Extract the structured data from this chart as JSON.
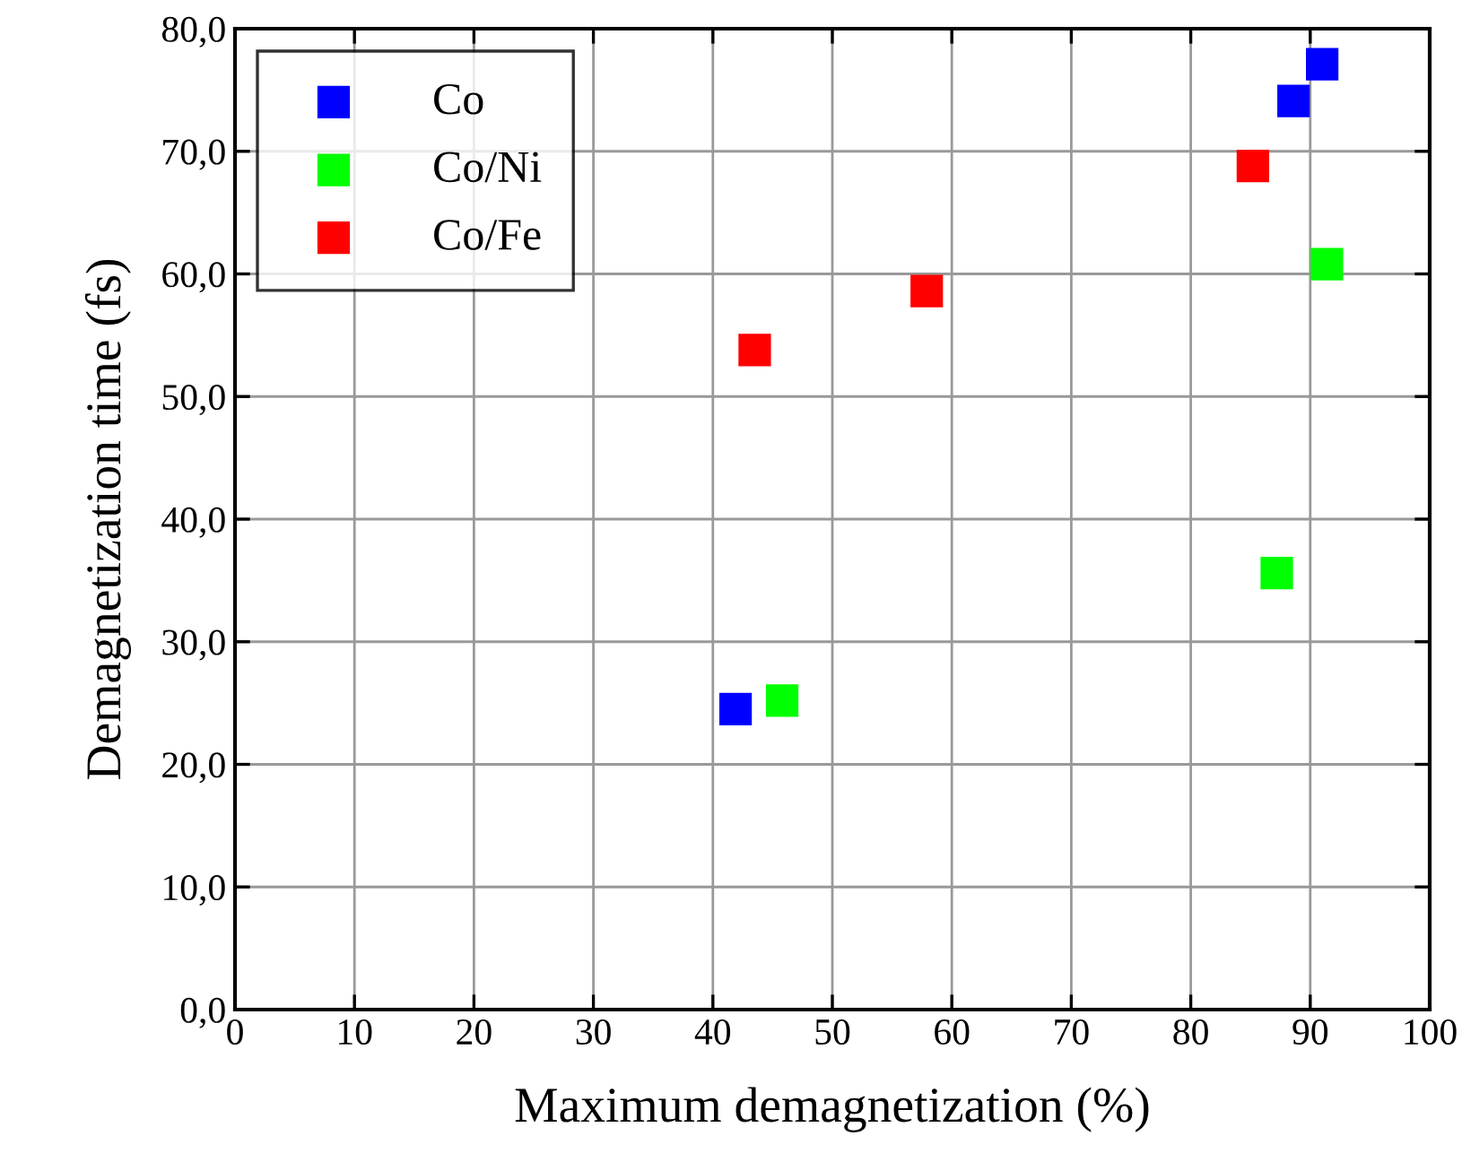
{
  "chart_data": {
    "type": "scatter",
    "xlabel": "Maximum demagnetization (%)",
    "ylabel": "Demagnetization time (fs)",
    "xlim": [
      0,
      100
    ],
    "xticks": [
      0,
      10,
      20,
      30,
      40,
      50,
      60,
      70,
      80,
      90,
      100
    ],
    "ylim": [
      0,
      80
    ],
    "yticks": [
      {
        "value": 0,
        "label": "0,0"
      },
      {
        "value": 10,
        "label": "10,0"
      },
      {
        "value": 20,
        "label": "20,0"
      },
      {
        "value": 30,
        "label": "30,0"
      },
      {
        "value": 40,
        "label": "40,0"
      },
      {
        "value": 50,
        "label": "50,0"
      },
      {
        "value": 60,
        "label": "60,0"
      },
      {
        "value": 70,
        "label": "70,0"
      },
      {
        "value": 80,
        "label": "80,0"
      }
    ],
    "grid": true,
    "legend": "top left",
    "marker": "square",
    "series": [
      {
        "name": "Co",
        "color": "#0000ff",
        "x": [
          41.9,
          88.6,
          91.0
        ],
        "values": [
          24.5,
          74.1,
          77.1
        ]
      },
      {
        "name": "Co/Ni",
        "color": "#00ff00",
        "x": [
          45.8,
          87.2,
          91.4
        ],
        "values": [
          25.2,
          35.6,
          60.8
        ]
      },
      {
        "name": "Co/Fe",
        "color": "#ff0000",
        "x": [
          43.5,
          57.9,
          85.2
        ],
        "values": [
          53.8,
          58.6,
          68.8
        ]
      }
    ]
  }
}
